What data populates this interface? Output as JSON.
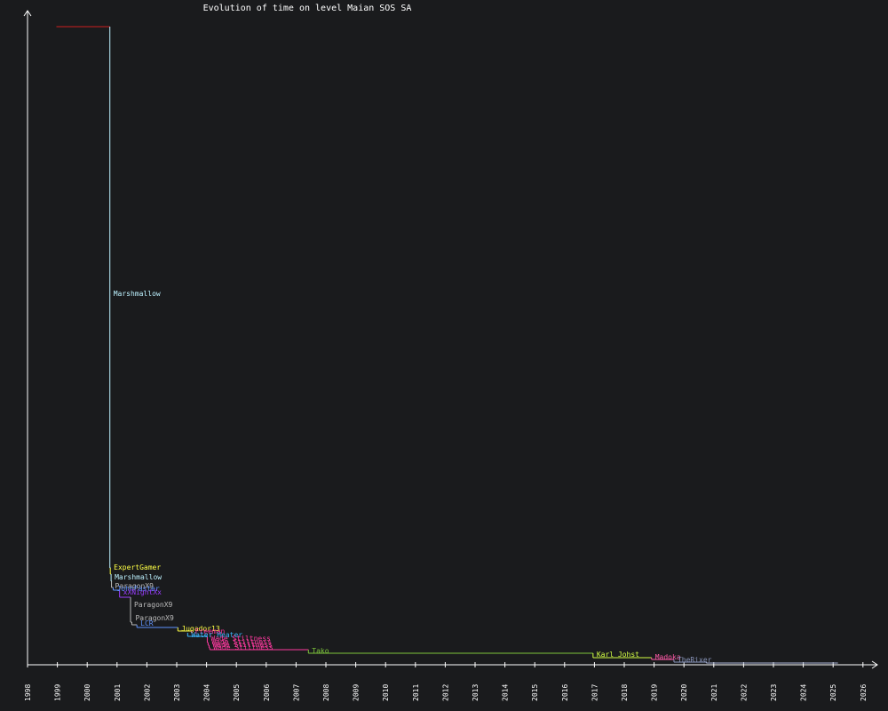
{
  "chart_data": {
    "type": "line",
    "title": "Evolution of time on level Maian SOS SA",
    "xlabel": "",
    "ylabel": "",
    "xlim": [
      "1998-01-01",
      "2026-06-01"
    ],
    "grid": false,
    "x_ticks": [
      "1998",
      "1999",
      "2000",
      "2001",
      "2002",
      "2003",
      "2004",
      "2005",
      "2006",
      "2007",
      "2008",
      "2009",
      "2010",
      "2011",
      "2012",
      "2013",
      "2014",
      "2015",
      "2016",
      "2017",
      "2018",
      "2019",
      "2020",
      "2021",
      "2022",
      "2023",
      "2024",
      "2025",
      "2026"
    ],
    "initial_record": {
      "color": "#cc1f1f",
      "start": "1998-12-20",
      "end": "2000-10-05"
    },
    "records": [
      {
        "name": "Marshmallow",
        "date": "2000-10-05",
        "color": "#bdf2ff",
        "show_label": true
      },
      {
        "name": "ExpertGamer",
        "date": "2000-10-10",
        "color": "#ffff44",
        "show_label": true
      },
      {
        "name": "Marshmallow",
        "date": "2000-10-20",
        "color": "#bdf2ff",
        "show_label": true
      },
      {
        "name": "ParagonX9",
        "date": "2000-10-25",
        "color": "#bbbbbb",
        "show_label": true
      },
      {
        "name": "JohnFaster",
        "date": "2000-11-15",
        "color": "#5f93ff",
        "show_label": true
      },
      {
        "name": "xXNightXx",
        "date": "2001-02-01",
        "color": "#9a3cff",
        "show_label": true
      },
      {
        "name": "ParagonX9",
        "date": "2001-06-15",
        "color": "#bbbbbb",
        "show_label": true
      },
      {
        "name": "ParagonX9",
        "date": "2001-07-01",
        "color": "#bbbbbb",
        "show_label": true
      },
      {
        "name": "LCR",
        "date": "2001-09-01",
        "color": "#5f93ff",
        "show_label": true
      },
      {
        "name": "Jugador13",
        "date": "2003-01-15",
        "color": "#ffff44",
        "show_label": true
      },
      {
        "name": "Freeman",
        "date": "2003-07-01",
        "color": "#ff3aa0",
        "show_label": true
      },
      {
        "name": "Water Heater",
        "date": "2003-05-15",
        "color": "#3cb7ff",
        "show_label": true
      },
      {
        "name": "Wade Stiltness",
        "date": "2004-01-10",
        "color": "#ff3aa0",
        "show_label": true
      },
      {
        "name": "Wade Stiltness",
        "date": "2004-01-20",
        "color": "#ff3aa0",
        "show_label": true
      },
      {
        "name": "Wade Stiltness",
        "date": "2004-02-01",
        "color": "#ff3aa0",
        "show_label": true
      },
      {
        "name": "Wade Stiltness",
        "date": "2004-02-10",
        "color": "#ff3aa0",
        "show_label": true
      },
      {
        "name": "Tako",
        "date": "2007-06-01",
        "color": "#7ec63c",
        "show_label": true
      },
      {
        "name": "Karl Johst",
        "date": "2016-12-15",
        "color": "#d4ff44",
        "show_label": true
      },
      {
        "name": "Madoka",
        "date": "2018-12-01",
        "color": "#ff5aa8",
        "show_label": true
      },
      {
        "name": "TheRixer",
        "date": "2019-09-01",
        "color": "#8b97bd",
        "show_label": true
      },
      {
        "name": "",
        "date": "2020-10-01",
        "color": "#a9b3d6",
        "show_label": false
      }
    ],
    "end_date": "2025-03-01"
  }
}
